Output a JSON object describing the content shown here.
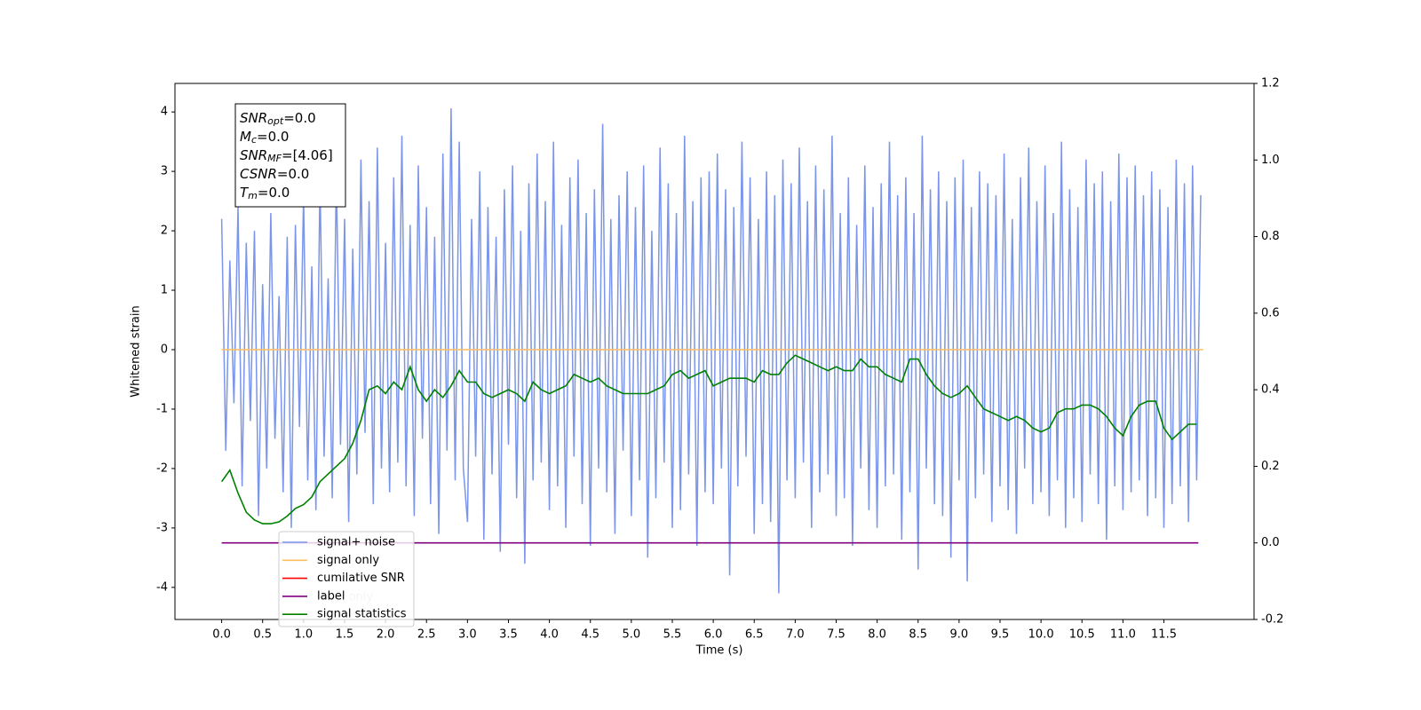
{
  "chart_data": {
    "type": "line",
    "xlabel": "Time (s)",
    "ylabel": "Whitened strain",
    "xlim": [
      -0.57,
      12.6
    ],
    "ylim": [
      -4.54,
      4.48
    ],
    "y2lim": [
      -0.2,
      1.2
    ],
    "xticks": [
      {
        "value": 0,
        "label": "0.0"
      },
      0.5,
      {
        "value": 1,
        "label": "1.0"
      },
      1.5,
      {
        "value": 2,
        "label": "2.0"
      },
      2.5,
      {
        "value": 3,
        "label": "3.0"
      },
      3.5,
      {
        "value": 4,
        "label": "4.0"
      },
      4.5,
      {
        "value": 5,
        "label": "5.0"
      },
      5.5,
      {
        "value": 6,
        "label": "6.0"
      },
      6.5,
      {
        "value": 7,
        "label": "7.0"
      },
      7.5,
      {
        "value": 8,
        "label": "8.0"
      },
      8.5,
      {
        "value": 9,
        "label": "9.0"
      },
      9.5,
      {
        "value": 10,
        "label": "10.0"
      },
      10.5,
      {
        "value": 11,
        "label": "11.0"
      },
      11.5
    ],
    "yticks": [
      -4,
      -3,
      -2,
      -1,
      0,
      1,
      2,
      3,
      4
    ],
    "y2ticks": [
      -0.2,
      {
        "value": 0,
        "label": "0.0"
      },
      0.2,
      0.4,
      0.6,
      0.8,
      {
        "value": 1,
        "label": "1.0"
      },
      1.2
    ],
    "grid": false,
    "legend": "lower left",
    "annotation": [
      {
        "symbol": "SNR",
        "sub": "opt",
        "text": "=0.0"
      },
      {
        "symbol": "M",
        "sub": "c",
        "text": "=0.0"
      },
      {
        "symbol": "SNR",
        "sub": "MF",
        "text": "=[4.06]"
      },
      {
        "symbol": "CSNR",
        "sub": "",
        "text": "=0.0"
      },
      {
        "symbol": "T",
        "sub": "m",
        "text": "=0.0"
      }
    ],
    "legend_shadow_text": "label only",
    "series": [
      {
        "name": "signal+ noise",
        "color": "#7a95e9",
        "axis": "y",
        "x": [
          0,
          0.05,
          0.1,
          0.15,
          0.2,
          0.25,
          0.3,
          0.35,
          0.4,
          0.45,
          0.5,
          0.55,
          0.6,
          0.65,
          0.7,
          0.75,
          0.8,
          0.85,
          0.9,
          0.95,
          1,
          1.05,
          1.1,
          1.15,
          1.2,
          1.25,
          1.3,
          1.35,
          1.4,
          1.45,
          1.5,
          1.55,
          1.6,
          1.65,
          1.7,
          1.75,
          1.8,
          1.85,
          1.9,
          1.95,
          2,
          2.05,
          2.1,
          2.15,
          2.2,
          2.25,
          2.3,
          2.35,
          2.4,
          2.45,
          2.5,
          2.55,
          2.6,
          2.65,
          2.7,
          2.75,
          2.8,
          2.85,
          2.9,
          2.95,
          3,
          3.05,
          3.1,
          3.15,
          3.2,
          3.25,
          3.3,
          3.35,
          3.4,
          3.45,
          3.5,
          3.55,
          3.6,
          3.65,
          3.7,
          3.75,
          3.8,
          3.85,
          3.9,
          3.95,
          4,
          4.05,
          4.1,
          4.15,
          4.2,
          4.25,
          4.3,
          4.35,
          4.4,
          4.45,
          4.5,
          4.55,
          4.6,
          4.65,
          4.7,
          4.75,
          4.8,
          4.85,
          4.9,
          4.95,
          5,
          5.05,
          5.1,
          5.15,
          5.2,
          5.25,
          5.3,
          5.35,
          5.4,
          5.45,
          5.5,
          5.55,
          5.6,
          5.65,
          5.7,
          5.75,
          5.8,
          5.85,
          5.9,
          5.95,
          6,
          6.05,
          6.1,
          6.15,
          6.2,
          6.25,
          6.3,
          6.35,
          6.4,
          6.45,
          6.5,
          6.55,
          6.6,
          6.65,
          6.7,
          6.75,
          6.8,
          6.85,
          6.9,
          6.95,
          7,
          7.05,
          7.1,
          7.15,
          7.2,
          7.25,
          7.3,
          7.35,
          7.4,
          7.45,
          7.5,
          7.55,
          7.6,
          7.65,
          7.7,
          7.75,
          7.8,
          7.85,
          7.9,
          7.95,
          8,
          8.05,
          8.1,
          8.15,
          8.2,
          8.25,
          8.3,
          8.35,
          8.4,
          8.45,
          8.5,
          8.55,
          8.6,
          8.65,
          8.7,
          8.75,
          8.8,
          8.85,
          8.9,
          8.95,
          9,
          9.05,
          9.1,
          9.15,
          9.2,
          9.25,
          9.3,
          9.35,
          9.4,
          9.45,
          9.5,
          9.55,
          9.6,
          9.65,
          9.7,
          9.75,
          9.8,
          9.85,
          9.9,
          9.95,
          10,
          10.05,
          10.1,
          10.15,
          10.2,
          10.25,
          10.3,
          10.35,
          10.4,
          10.45,
          10.5,
          10.55,
          10.6,
          10.65,
          10.7,
          10.75,
          10.8,
          10.85,
          10.9,
          10.95,
          11,
          11.05,
          11.1,
          11.15,
          11.2,
          11.25,
          11.3,
          11.35,
          11.4,
          11.45,
          11.5,
          11.55,
          11.6,
          11.65,
          11.7,
          11.75,
          11.8,
          11.85,
          11.9,
          11.95
        ],
        "values": [
          2.2,
          -1.7,
          1.5,
          -0.9,
          2.4,
          -2.3,
          1.8,
          -1.2,
          2.0,
          -2.8,
          1.1,
          -2.0,
          2.3,
          -1.5,
          0.9,
          -2.4,
          1.9,
          -3.0,
          2.1,
          -1.3,
          2.6,
          -2.2,
          1.4,
          -2.7,
          2.9,
          -1.8,
          1.2,
          -2.5,
          3.0,
          -1.6,
          2.2,
          -2.9,
          1.7,
          -2.1,
          3.2,
          -1.4,
          2.5,
          -2.6,
          3.4,
          -2.0,
          1.8,
          -2.4,
          2.9,
          -1.9,
          3.6,
          -2.3,
          2.1,
          -2.8,
          3.1,
          -1.5,
          2.4,
          -2.6,
          1.9,
          -3.1,
          3.3,
          -1.7,
          4.06,
          -2.2,
          3.5,
          -2.0,
          -2.9,
          2.2,
          -1.8,
          3.0,
          -3.2,
          2.4,
          -2.1,
          1.9,
          -3.4,
          2.7,
          -1.6,
          3.1,
          -2.5,
          2.0,
          -3.6,
          2.8,
          -2.2,
          3.3,
          -1.9,
          2.5,
          -2.7,
          3.5,
          -2.3,
          2.1,
          -3.0,
          2.9,
          -1.8,
          3.2,
          -2.6,
          2.3,
          -3.3,
          2.7,
          -2.0,
          3.8,
          -2.4,
          2.2,
          -3.1,
          2.6,
          -1.7,
          3.0,
          -2.8,
          2.4,
          -2.2,
          3.1,
          -3.5,
          2.0,
          -2.5,
          3.4,
          -1.9,
          2.8,
          -3.0,
          2.3,
          -2.7,
          3.6,
          -2.1,
          2.5,
          -3.3,
          2.9,
          -2.4,
          3.0,
          -2.6,
          3.3,
          -2.0,
          2.7,
          -3.8,
          2.4,
          -2.3,
          3.5,
          -1.8,
          2.9,
          -3.1,
          2.2,
          -2.6,
          3.0,
          -2.9,
          2.6,
          -4.1,
          3.2,
          -2.2,
          2.8,
          -2.5,
          3.4,
          -1.9,
          2.5,
          -3.0,
          3.1,
          -2.4,
          2.7,
          -2.1,
          3.6,
          -2.8,
          2.3,
          -2.5,
          2.9,
          -3.3,
          2.1,
          -2.0,
          3.1,
          -2.7,
          2.4,
          -3.0,
          2.8,
          -2.3,
          3.5,
          -2.1,
          2.6,
          -3.2,
          2.9,
          -2.4,
          2.3,
          -3.7,
          3.6,
          -2.0,
          2.7,
          -2.6,
          3.0,
          -2.8,
          2.5,
          -3.5,
          2.9,
          -2.2,
          3.2,
          -3.9,
          2.4,
          -2.5,
          3.0,
          -2.1,
          2.8,
          -2.9,
          2.6,
          -2.3,
          3.3,
          -2.7,
          2.2,
          -3.1,
          2.9,
          -2.0,
          3.4,
          -2.6,
          2.5,
          -2.4,
          3.1,
          -2.8,
          2.3,
          -2.2,
          3.5,
          -3.0,
          2.7,
          -2.5,
          2.4,
          -2.9,
          3.2,
          -2.1,
          2.8,
          -2.6,
          3.0,
          -3.2,
          2.5,
          -2.3,
          3.3,
          -2.7,
          2.9,
          -2.4,
          3.1,
          -2.2,
          2.6,
          -2.8,
          3.0,
          -2.5,
          2.7,
          -3.0,
          2.4,
          -2.6,
          3.2,
          -2.3,
          2.8,
          -2.9,
          3.1,
          -2.2,
          2.6
        ]
      },
      {
        "name": "signal only",
        "color": "#ffbe5c",
        "axis": "y",
        "x": [
          0,
          11.98
        ],
        "values": [
          0,
          0
        ]
      },
      {
        "name": "cumilative SNR",
        "color": "#ff0000",
        "axis": "y2",
        "x": [],
        "values": []
      },
      {
        "name": "label",
        "color": "#800080",
        "axis": "y2",
        "x": [
          0,
          11.92
        ],
        "values": [
          0,
          0
        ]
      },
      {
        "name": "signal statistics",
        "color": "#008000",
        "axis": "y2",
        "x": [
          0,
          0.1,
          0.2,
          0.3,
          0.4,
          0.5,
          0.6,
          0.7,
          0.8,
          0.9,
          1,
          1.1,
          1.2,
          1.3,
          1.4,
          1.5,
          1.6,
          1.7,
          1.8,
          1.9,
          2,
          2.1,
          2.2,
          2.3,
          2.4,
          2.5,
          2.6,
          2.7,
          2.8,
          2.9,
          3,
          3.1,
          3.2,
          3.3,
          3.4,
          3.5,
          3.6,
          3.7,
          3.8,
          3.9,
          4,
          4.1,
          4.2,
          4.3,
          4.4,
          4.5,
          4.6,
          4.7,
          4.8,
          4.9,
          5,
          5.1,
          5.2,
          5.3,
          5.4,
          5.5,
          5.6,
          5.7,
          5.8,
          5.9,
          6,
          6.1,
          6.2,
          6.3,
          6.4,
          6.5,
          6.6,
          6.7,
          6.8,
          6.9,
          7,
          7.1,
          7.2,
          7.3,
          7.4,
          7.5,
          7.6,
          7.7,
          7.8,
          7.9,
          8,
          8.1,
          8.2,
          8.3,
          8.4,
          8.5,
          8.6,
          8.7,
          8.8,
          8.9,
          9,
          9.1,
          9.2,
          9.3,
          9.4,
          9.5,
          9.6,
          9.7,
          9.8,
          9.9,
          10,
          10.1,
          10.2,
          10.3,
          10.4,
          10.5,
          10.6,
          10.7,
          10.8,
          10.9,
          11,
          11.1,
          11.2,
          11.3,
          11.4,
          11.5,
          11.6,
          11.7,
          11.8,
          11.9
        ],
        "values": [
          0.16,
          0.19,
          0.13,
          0.08,
          0.06,
          0.05,
          0.05,
          0.055,
          0.07,
          0.09,
          0.1,
          0.12,
          0.16,
          0.18,
          0.2,
          0.22,
          0.26,
          0.32,
          0.4,
          0.41,
          0.39,
          0.42,
          0.4,
          0.46,
          0.4,
          0.37,
          0.4,
          0.38,
          0.41,
          0.45,
          0.42,
          0.42,
          0.39,
          0.38,
          0.39,
          0.4,
          0.39,
          0.37,
          0.42,
          0.4,
          0.39,
          0.4,
          0.41,
          0.44,
          0.43,
          0.42,
          0.43,
          0.41,
          0.4,
          0.39,
          0.39,
          0.39,
          0.39,
          0.4,
          0.41,
          0.44,
          0.45,
          0.43,
          0.44,
          0.45,
          0.41,
          0.42,
          0.43,
          0.43,
          0.43,
          0.42,
          0.45,
          0.44,
          0.44,
          0.47,
          0.49,
          0.48,
          0.47,
          0.46,
          0.45,
          0.46,
          0.45,
          0.45,
          0.48,
          0.46,
          0.46,
          0.44,
          0.43,
          0.42,
          0.48,
          0.48,
          0.44,
          0.41,
          0.39,
          0.38,
          0.39,
          0.41,
          0.38,
          0.35,
          0.34,
          0.33,
          0.32,
          0.33,
          0.32,
          0.3,
          0.29,
          0.3,
          0.34,
          0.35,
          0.35,
          0.36,
          0.36,
          0.35,
          0.33,
          0.3,
          0.28,
          0.33,
          0.36,
          0.37,
          0.37,
          0.3,
          0.27,
          0.29,
          0.31,
          0.31
        ]
      }
    ]
  }
}
